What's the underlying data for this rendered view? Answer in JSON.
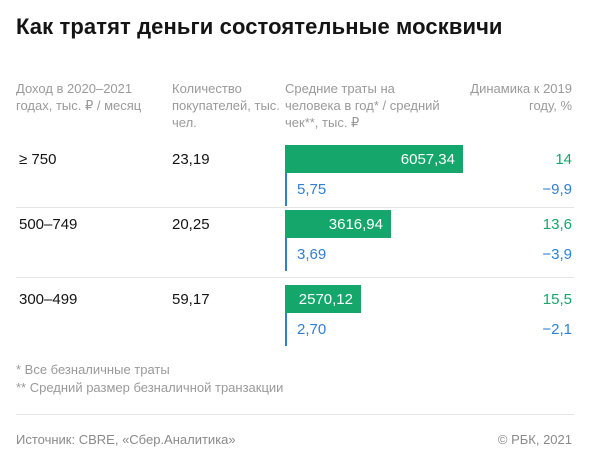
{
  "title": "Как тратят деньги состоятельные москвичи",
  "headers": {
    "income": "Доход в 2020–2021 годах, тыс. ₽ / месяц",
    "buyers": "Количество покупателей, тыс. чел.",
    "spend": "Средние траты на человека в год* / средний чек**, тыс. ₽",
    "dynamics": "Динамика к 2019 году, %"
  },
  "rows": [
    {
      "income": "≥ 750",
      "buyers": "23,19",
      "spend_label": "6057,34",
      "check_label": "5,75",
      "dyn_spend": "14",
      "dyn_check": "−9,9"
    },
    {
      "income": "500–749",
      "buyers": "20,25",
      "spend_label": "3616,94",
      "check_label": "3,69",
      "dyn_spend": "13,6",
      "dyn_check": "−3,9"
    },
    {
      "income": "300–499",
      "buyers": "59,17",
      "spend_label": "2570,12",
      "check_label": "2,70",
      "dyn_spend": "15,5",
      "dyn_check": "−2,1"
    }
  ],
  "chart_data": {
    "type": "bar",
    "orientation": "horizontal",
    "categories": [
      "≥ 750",
      "500–749",
      "300–499"
    ],
    "series": [
      {
        "name": "Средние траты на человека в год*",
        "values": [
          6057.34,
          3616.94,
          2570.12
        ],
        "color": "#14a66b"
      },
      {
        "name": "средний чек**",
        "values": [
          5.75,
          3.69,
          2.7
        ],
        "color": "#2f7fd3"
      }
    ],
    "buyers": [
      23.19,
      20.25,
      59.17
    ],
    "dynamics_spend": [
      14,
      13.6,
      15.5
    ],
    "dynamics_check": [
      -9.9,
      -3.9,
      -2.1
    ],
    "xlim": [
      0,
      6057.34
    ]
  },
  "notes": {
    "note1": "* Все безналичные траты",
    "note2": "** Средний размер безналичной транзакции"
  },
  "footer": {
    "source": "Источник:  CBRE, «Сбер.Аналитика»",
    "copyright": "©  РБК, 2021"
  },
  "colors": {
    "spend": "#14a66b",
    "check": "#2f7fd3"
  }
}
